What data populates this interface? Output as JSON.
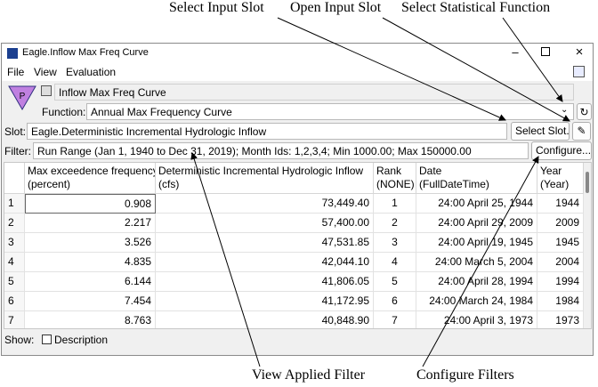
{
  "annotations": {
    "top": [
      "Select Input Slot",
      "Open Input Slot",
      "Select Statistical Function"
    ],
    "bottom": [
      "View Applied Filter",
      "Configure Filters"
    ]
  },
  "window": {
    "title": "Eagle.Inflow Max Freq Curve",
    "menu": [
      "File",
      "View",
      "Evaluation"
    ],
    "name": "Inflow Max Freq Curve",
    "function_label": "Function:",
    "function": "Annual Max Frequency Curve",
    "slot_label": "Slot:",
    "slot": "Eagle.Deterministic Incremental Hydrologic Inflow",
    "select_slot": "Select Slot...",
    "filter_label": "Filter:",
    "filter": "Run Range (Jan 1, 1940 to Dec 31, 2019); Month Ids: 1,2,3,4; Min 1000.00; Max 150000.00",
    "configure": "Configure...",
    "show_label": "Show:",
    "description": "Description"
  },
  "table": {
    "headers": [
      [
        "Max exceedence frequency",
        "(percent)"
      ],
      [
        "Deterministic Incremental Hydrologic Inflow",
        "(cfs)"
      ],
      [
        "Rank",
        "(NONE)"
      ],
      [
        "Date",
        "(FullDateTime)"
      ],
      [
        "Year",
        "(Year)"
      ]
    ],
    "rows": [
      [
        "1",
        "0.908",
        "73,449.40",
        "1",
        "24:00 April 25, 1944",
        "1944"
      ],
      [
        "2",
        "2.217",
        "57,400.00",
        "2",
        "24:00 April 29, 2009",
        "2009"
      ],
      [
        "3",
        "3.526",
        "47,531.85",
        "3",
        "24:00 April 19, 1945",
        "1945"
      ],
      [
        "4",
        "4.835",
        "42,044.10",
        "4",
        "24:00 March 5, 2004",
        "2004"
      ],
      [
        "5",
        "6.144",
        "41,806.05",
        "5",
        "24:00 April 28, 1994",
        "1994"
      ],
      [
        "6",
        "7.454",
        "41,172.95",
        "6",
        "24:00 March 24, 1984",
        "1984"
      ],
      [
        "7",
        "8.763",
        "40,848.90",
        "7",
        "24:00 April 3, 1973",
        "1973"
      ]
    ]
  }
}
